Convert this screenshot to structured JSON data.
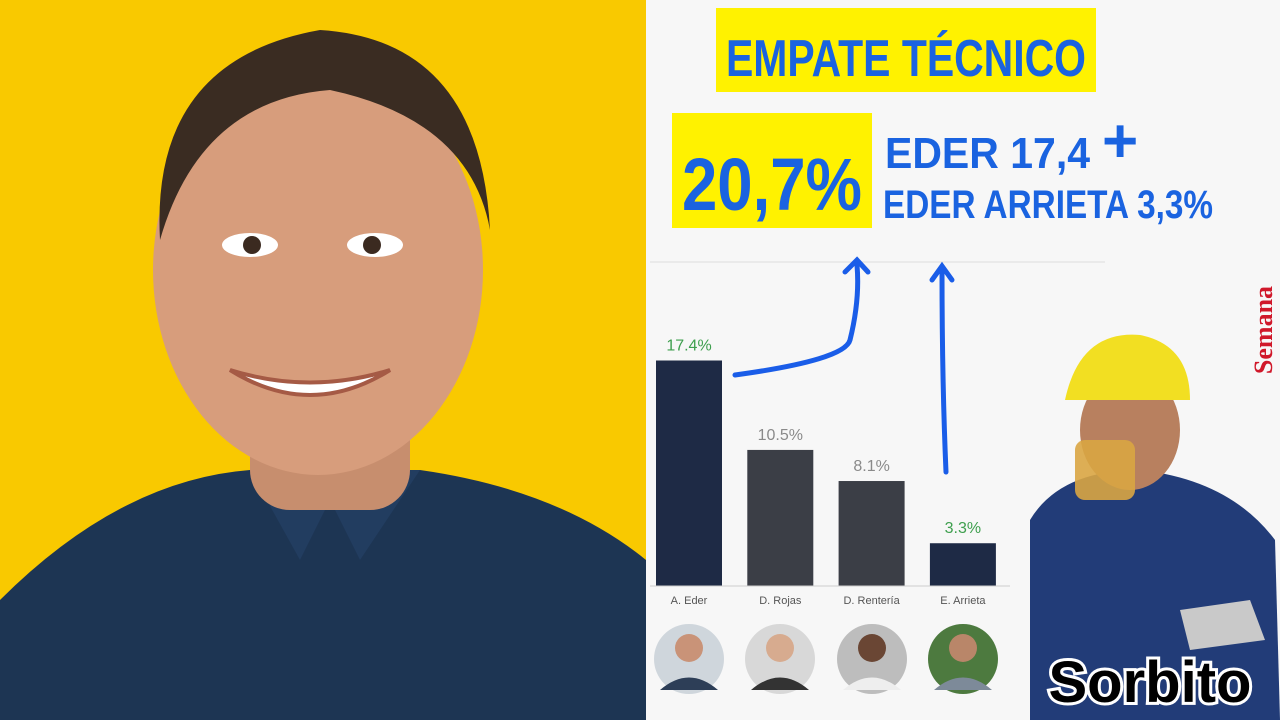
{
  "headline": "EMPATE TÉCNICO",
  "total": "20,7%",
  "detail_1": "EDER 17,4",
  "plus": "+",
  "detail_2": "EDER ARRIETA  3,3%",
  "source": "Semana",
  "tag": "Sorbito",
  "chart_data": {
    "type": "bar",
    "categories": [
      "A. Eder",
      "D. Rojas",
      "D. Rentería",
      "E. Arrieta"
    ],
    "values": [
      17.4,
      10.5,
      8.1,
      3.3
    ],
    "value_labels": [
      "17.4%",
      "10.5%",
      "8.1%",
      "3.3%"
    ],
    "colors": [
      "#1e2a45",
      "#3b3e46",
      "#3b3e46",
      "#1e2a45"
    ],
    "label_colors": [
      "#3e9f4e",
      "#8a8a8a",
      "#8a8a8a",
      "#3e9f4e"
    ],
    "ylim": [
      0,
      25
    ]
  }
}
